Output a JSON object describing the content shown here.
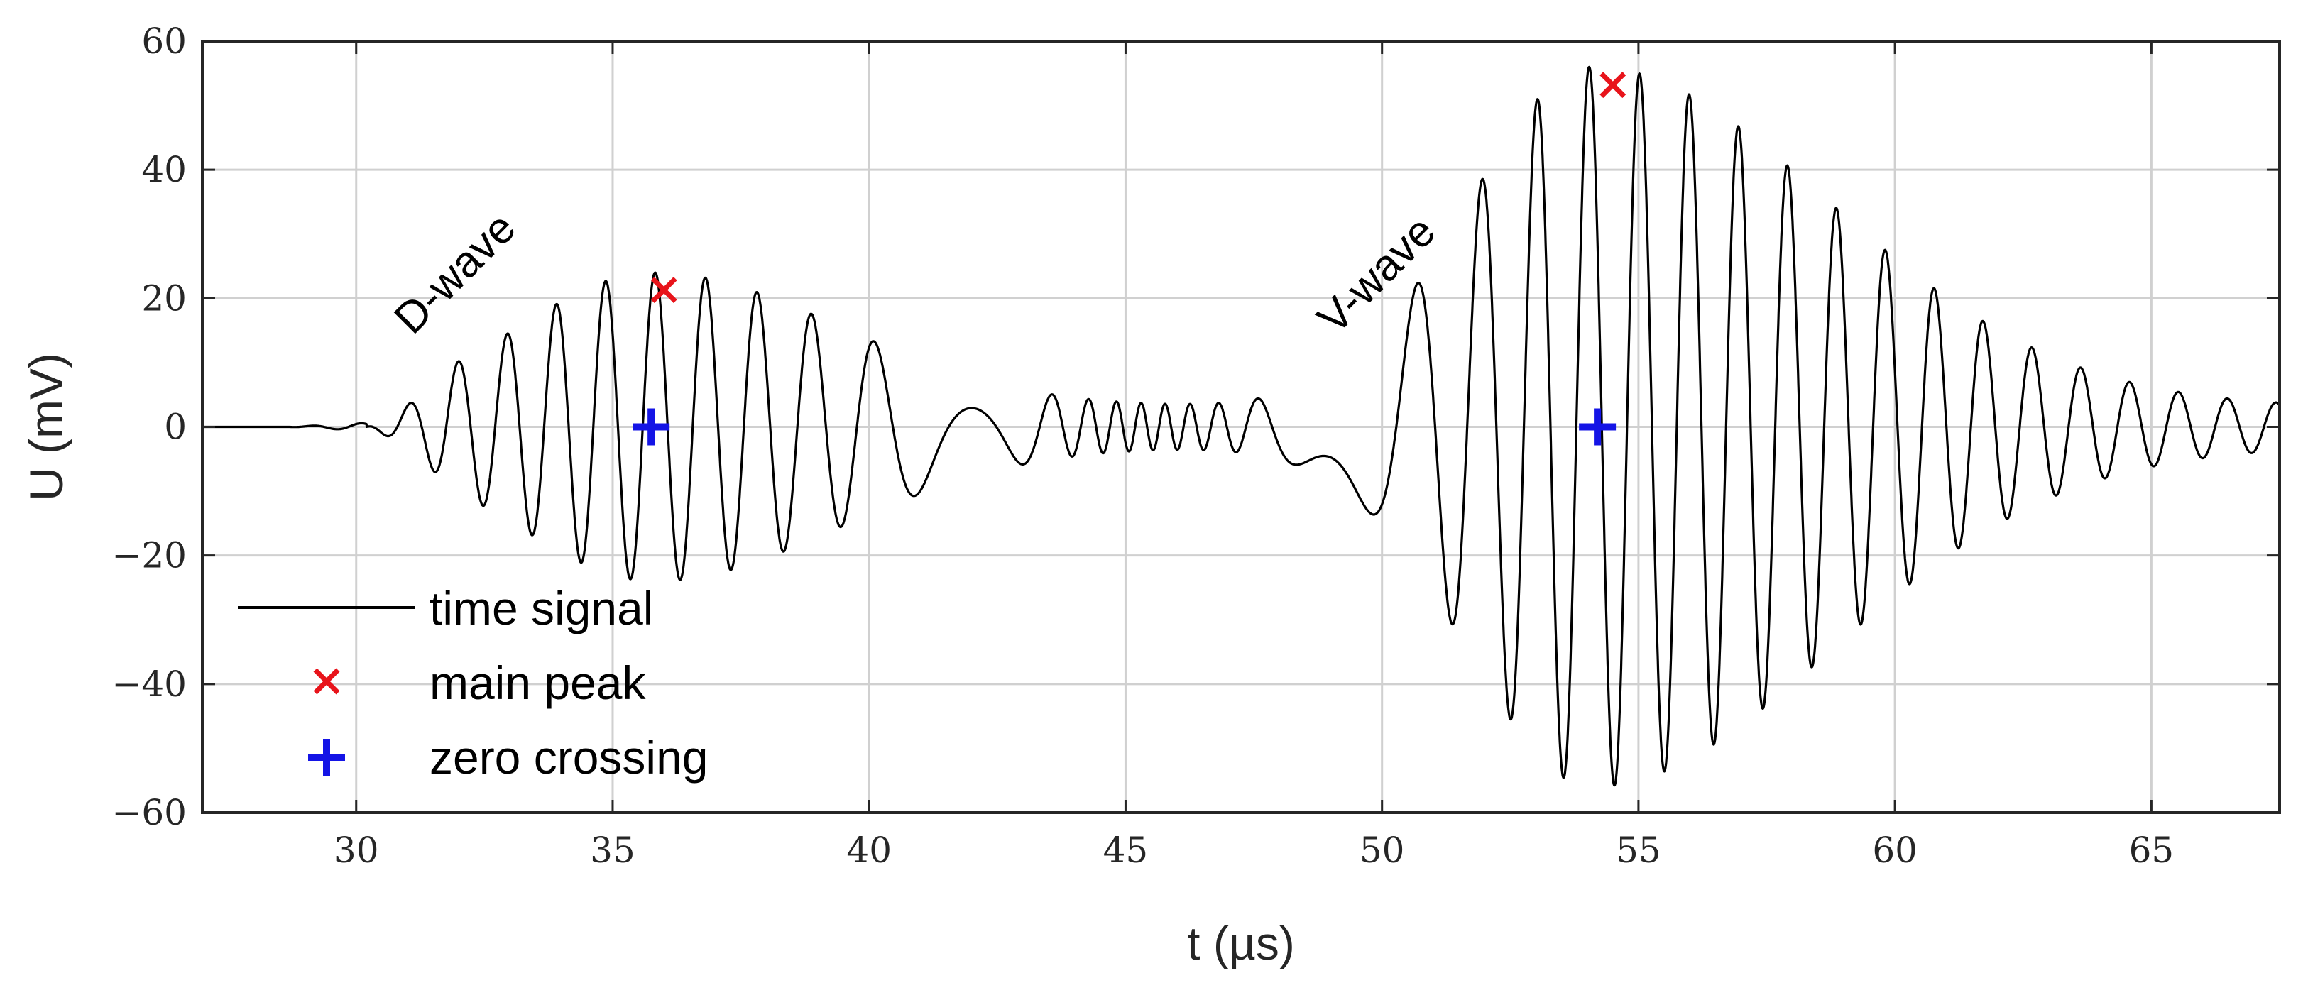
{
  "chart_data": {
    "type": "line",
    "title": "",
    "xlabel": "t (µs)",
    "ylabel": "U (mV)",
    "xlim": [
      27,
      67.5
    ],
    "ylim": [
      -60,
      60
    ],
    "xticks": [
      30,
      35,
      40,
      45,
      50,
      55,
      60,
      65
    ],
    "yticks": [
      -60,
      -40,
      -20,
      0,
      20,
      40,
      60
    ],
    "xtick_labels": [
      "30",
      "35",
      "40",
      "45",
      "50",
      "55",
      "60",
      "65"
    ],
    "ytick_labels": [
      "−60",
      "−40",
      "−20",
      "0",
      "20",
      "40",
      "60"
    ],
    "grid": true,
    "legend_position": "bottom-left",
    "colors": {
      "signal": "#000000",
      "peak": "#e8141b",
      "zero": "#1414e6",
      "grid": "#d0d0d0",
      "axis": "#262626"
    },
    "signal": {
      "name": "time signal",
      "onset": 30.2,
      "approx_frequency_mhz": 1.05,
      "d_wave_envelope": {
        "center": 35.8,
        "peak_amplitude": 21,
        "rise_width": 2.6,
        "decay_width": 3.6
      },
      "v_wave_envelope": {
        "center": 54.1,
        "peak_amplitude": 53,
        "rise_width": 2.4,
        "decay_width": 4.6
      },
      "baseline_ripple_amplitude": 3
    },
    "series": [
      {
        "name": "main peak",
        "marker": "x",
        "points": [
          {
            "x": 36.0,
            "y": 21.3
          },
          {
            "x": 54.5,
            "y": 53.2
          }
        ]
      },
      {
        "name": "zero crossing",
        "marker": "+",
        "points": [
          {
            "x": 35.75,
            "y": 0
          },
          {
            "x": 54.2,
            "y": 0
          }
        ]
      }
    ],
    "legend": [
      "time signal",
      "main peak",
      "zero crossing"
    ],
    "annotations": [
      {
        "text": "D-wave",
        "x": 31.1,
        "y": 18.5,
        "rotation": -45
      },
      {
        "text": "V-wave",
        "x": 49.1,
        "y": 18.5,
        "rotation": -45
      }
    ]
  }
}
